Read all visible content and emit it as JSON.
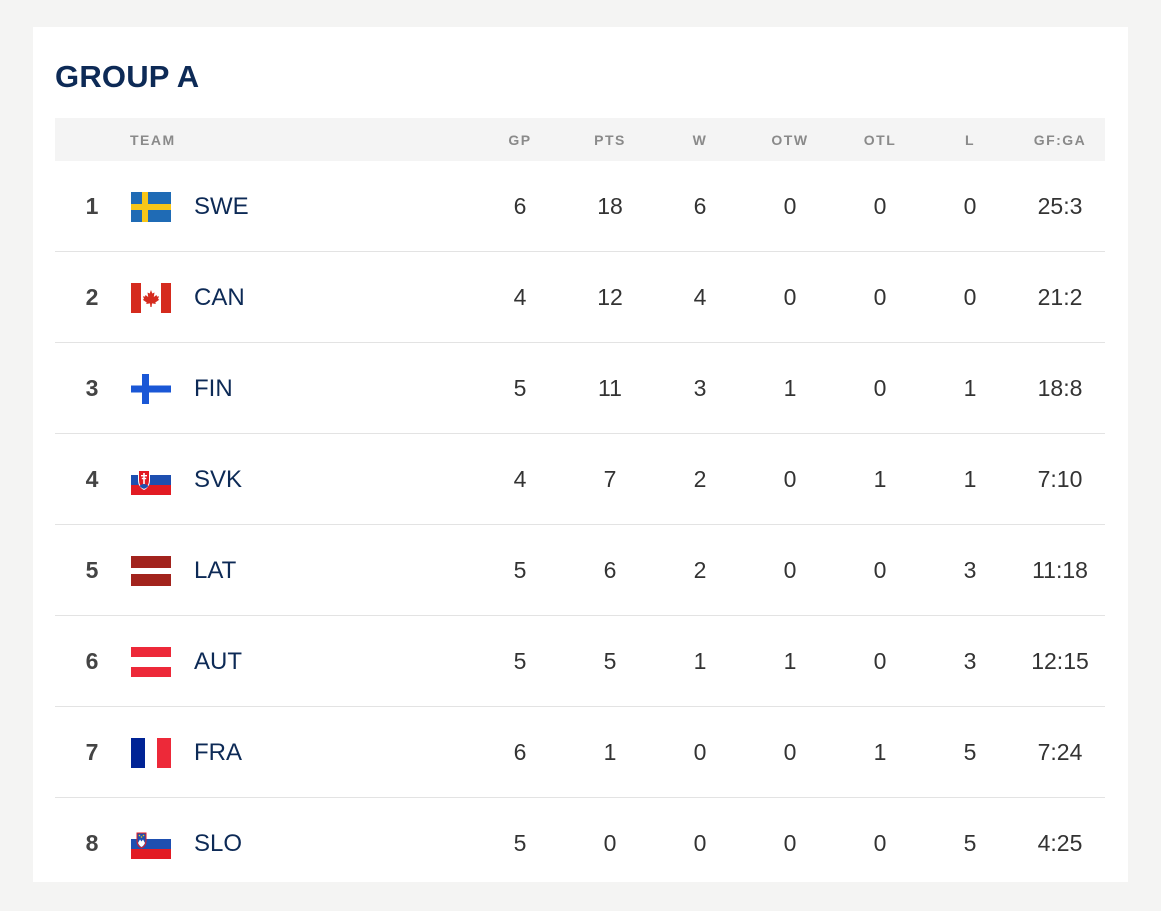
{
  "group": {
    "title": "GROUP A"
  },
  "columns": {
    "team": "TEAM",
    "gp": "GP",
    "pts": "PTS",
    "w": "W",
    "otw": "OTW",
    "otl": "OTL",
    "l": "L",
    "gfga": "GF:GA"
  },
  "standings": [
    {
      "rank": "1",
      "team": "SWE",
      "flag_icon": "flag-sweden-icon",
      "gp": "6",
      "pts": "18",
      "w": "6",
      "otw": "0",
      "otl": "0",
      "l": "0",
      "gfga": "25:3"
    },
    {
      "rank": "2",
      "team": "CAN",
      "flag_icon": "flag-canada-icon",
      "gp": "4",
      "pts": "12",
      "w": "4",
      "otw": "0",
      "otl": "0",
      "l": "0",
      "gfga": "21:2"
    },
    {
      "rank": "3",
      "team": "FIN",
      "flag_icon": "flag-finland-icon",
      "gp": "5",
      "pts": "11",
      "w": "3",
      "otw": "1",
      "otl": "0",
      "l": "1",
      "gfga": "18:8"
    },
    {
      "rank": "4",
      "team": "SVK",
      "flag_icon": "flag-slovakia-icon",
      "gp": "4",
      "pts": "7",
      "w": "2",
      "otw": "0",
      "otl": "1",
      "l": "1",
      "gfga": "7:10"
    },
    {
      "rank": "5",
      "team": "LAT",
      "flag_icon": "flag-latvia-icon",
      "gp": "5",
      "pts": "6",
      "w": "2",
      "otw": "0",
      "otl": "0",
      "l": "3",
      "gfga": "11:18"
    },
    {
      "rank": "6",
      "team": "AUT",
      "flag_icon": "flag-austria-icon",
      "gp": "5",
      "pts": "5",
      "w": "1",
      "otw": "1",
      "otl": "0",
      "l": "3",
      "gfga": "12:15"
    },
    {
      "rank": "7",
      "team": "FRA",
      "flag_icon": "flag-france-icon",
      "gp": "6",
      "pts": "1",
      "w": "0",
      "otw": "0",
      "otl": "1",
      "l": "5",
      "gfga": "7:24"
    },
    {
      "rank": "8",
      "team": "SLO",
      "flag_icon": "flag-slovenia-icon",
      "gp": "5",
      "pts": "0",
      "w": "0",
      "otw": "0",
      "otl": "0",
      "l": "5",
      "gfga": "4:25"
    }
  ],
  "colors": {
    "title": "#0d2a56",
    "header_bg": "#f4f4f4",
    "page_bg": "#f4f4f3"
  }
}
